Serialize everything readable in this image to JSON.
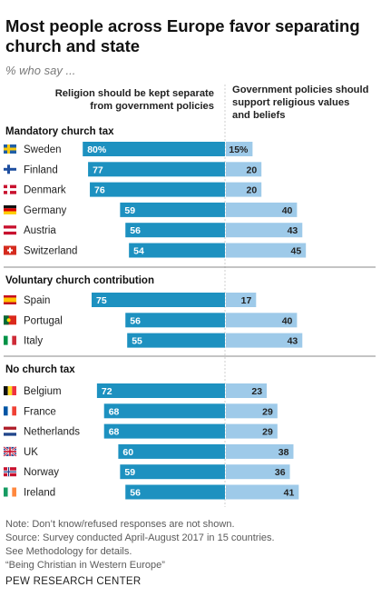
{
  "title": "Most people across Europe favor separating church and state",
  "subtitle": "% who say ...",
  "notes": [
    "Note: Don’t know/refused responses are not shown.",
    "Source: Survey conducted April-August 2017 in 15 countries.",
    "See Methodology for details.",
    "“Being Christian in Western Europe”"
  ],
  "brand": "PEW RESEARCH CENTER",
  "colors": {
    "left": "#1d91c0",
    "right": "#9ecae9",
    "divider": "#cfcfcf"
  },
  "chart_data": {
    "type": "bar",
    "orientation": "horizontal-diverging",
    "legend": {
      "left": [
        "Religion should be kept separate",
        "from government policies"
      ],
      "right": [
        "Government policies should",
        "support religious values",
        "and beliefs"
      ]
    },
    "series": [
      {
        "name": "Religion should be kept separate from government policies",
        "side": "left"
      },
      {
        "name": "Government policies should support religious values and beliefs",
        "side": "right"
      }
    ],
    "groups": [
      {
        "label": "Mandatory church tax",
        "rows": [
          {
            "country": "Sweden",
            "flag": "sweden-flag",
            "left": 80,
            "right": 15,
            "left_label": "80%",
            "right_label": "15%"
          },
          {
            "country": "Finland",
            "flag": "finland-flag",
            "left": 77,
            "right": 20,
            "left_label": "77",
            "right_label": "20"
          },
          {
            "country": "Denmark",
            "flag": "denmark-flag",
            "left": 76,
            "right": 20,
            "left_label": "76",
            "right_label": "20"
          },
          {
            "country": "Germany",
            "flag": "germany-flag",
            "left": 59,
            "right": 40,
            "left_label": "59",
            "right_label": "40"
          },
          {
            "country": "Austria",
            "flag": "austria-flag",
            "left": 56,
            "right": 43,
            "left_label": "56",
            "right_label": "43"
          },
          {
            "country": "Switzerland",
            "flag": "switzerland-flag",
            "left": 54,
            "right": 45,
            "left_label": "54",
            "right_label": "45"
          }
        ]
      },
      {
        "label": "Voluntary church contribution",
        "rows": [
          {
            "country": "Spain",
            "flag": "spain-flag",
            "left": 75,
            "right": 17,
            "left_label": "75",
            "right_label": "17"
          },
          {
            "country": "Portugal",
            "flag": "portugal-flag",
            "left": 56,
            "right": 40,
            "left_label": "56",
            "right_label": "40"
          },
          {
            "country": "Italy",
            "flag": "italy-flag",
            "left": 55,
            "right": 43,
            "left_label": "55",
            "right_label": "43"
          }
        ]
      },
      {
        "label": "No church tax",
        "rows": [
          {
            "country": "Belgium",
            "flag": "belgium-flag",
            "left": 72,
            "right": 23,
            "left_label": "72",
            "right_label": "23"
          },
          {
            "country": "France",
            "flag": "france-flag",
            "left": 68,
            "right": 29,
            "left_label": "68",
            "right_label": "29"
          },
          {
            "country": "Netherlands",
            "flag": "netherlands-flag",
            "left": 68,
            "right": 29,
            "left_label": "68",
            "right_label": "29"
          },
          {
            "country": "UK",
            "flag": "uk-flag",
            "left": 60,
            "right": 38,
            "left_label": "60",
            "right_label": "38"
          },
          {
            "country": "Norway",
            "flag": "norway-flag",
            "left": 59,
            "right": 36,
            "left_label": "59",
            "right_label": "36"
          },
          {
            "country": "Ireland",
            "flag": "ireland-flag",
            "left": 56,
            "right": 41,
            "left_label": "56",
            "right_label": "41"
          }
        ]
      }
    ]
  }
}
